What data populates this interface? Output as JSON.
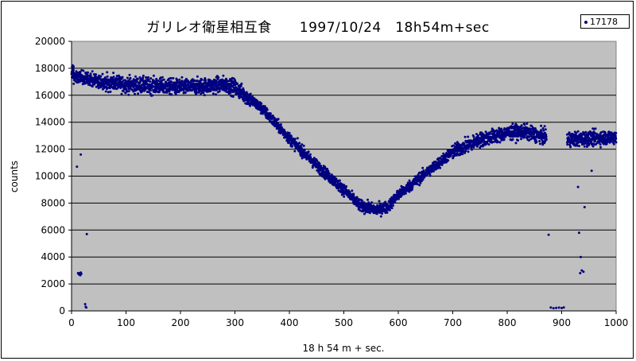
{
  "chart_data": {
    "type": "scatter",
    "title": "ガリレオ衛星相互食　　1997/10/24　18h54m+sec",
    "xlabel": "18 h 54 m + sec.",
    "ylabel": "counts",
    "xlim": [
      0,
      1000
    ],
    "ylim": [
      0,
      20000
    ],
    "x_ticks": [
      0,
      100,
      200,
      300,
      400,
      500,
      600,
      700,
      800,
      900,
      1000
    ],
    "y_ticks": [
      0,
      2000,
      4000,
      6000,
      8000,
      10000,
      12000,
      14000,
      16000,
      18000,
      20000
    ],
    "x_tick_labels": [
      "0",
      "100",
      "200",
      "300",
      "400",
      "500",
      "600",
      "700",
      "800",
      "900",
      "1000"
    ],
    "y_tick_labels": [
      "0",
      "2000",
      "4000",
      "6000",
      "8000",
      "10000",
      "12000",
      "14000",
      "16000",
      "18000",
      "20000"
    ],
    "grid": "horizontal",
    "legend_position": "top-right",
    "series": [
      {
        "name": "17178",
        "color": "#000080",
        "trend_x": [
          0,
          5,
          20,
          50,
          100,
          150,
          200,
          250,
          280,
          300,
          350,
          400,
          450,
          500,
          530,
          560,
          580,
          600,
          650,
          700,
          750,
          800,
          830,
          870,
          875,
          900,
          950,
          1000
        ],
        "trend_y": [
          17700,
          17500,
          17300,
          17000,
          16800,
          16700,
          16600,
          16700,
          16800,
          16600,
          15000,
          12800,
          10800,
          9000,
          7800,
          7500,
          7700,
          8600,
          10200,
          11800,
          12700,
          13200,
          13300,
          12900,
          12800,
          12700,
          12800,
          12900
        ],
        "dropout_points": [
          [
            10,
            10700
          ],
          [
            12,
            2800
          ],
          [
            13,
            2750
          ],
          [
            14,
            2700
          ],
          [
            15,
            2800
          ],
          [
            16,
            2650
          ],
          [
            17,
            2850
          ],
          [
            18,
            2750
          ],
          [
            17,
            11600
          ],
          [
            25,
            500
          ],
          [
            26,
            300
          ],
          [
            27,
            250
          ],
          [
            28,
            5700
          ],
          [
            876,
            5650
          ],
          [
            880,
            250
          ],
          [
            885,
            200
          ],
          [
            890,
            220
          ],
          [
            895,
            240
          ],
          [
            900,
            210
          ],
          [
            904,
            260
          ],
          [
            930,
            9200
          ],
          [
            932,
            5800
          ],
          [
            934,
            2800
          ],
          [
            935,
            4000
          ],
          [
            937,
            3000
          ],
          [
            940,
            2900
          ],
          [
            942,
            7700
          ],
          [
            955,
            10400
          ]
        ]
      }
    ]
  }
}
